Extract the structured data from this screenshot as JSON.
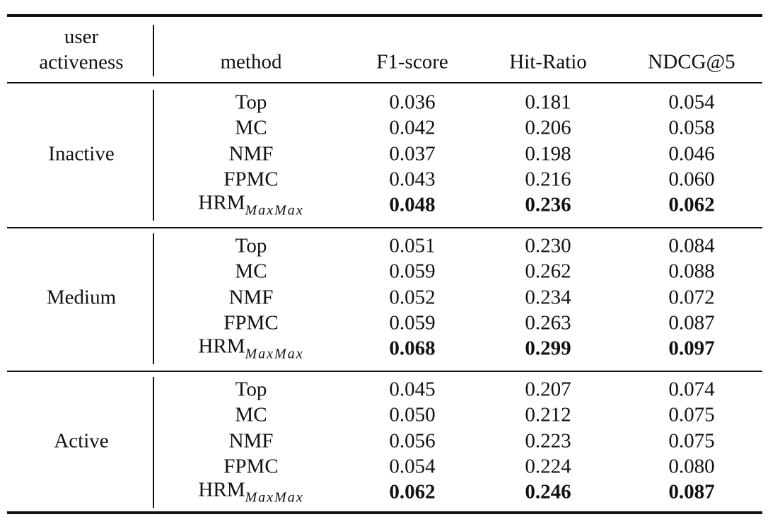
{
  "table": {
    "header": [
      "user activeness",
      "method",
      "F1-score",
      "Hit-Ratio",
      "NDCG@5"
    ],
    "groups": [
      {
        "name": "Inactive",
        "rows": [
          {
            "method": "Top",
            "values": [
              "0.036",
              "0.181",
              "0.054"
            ]
          },
          {
            "method": "MC",
            "values": [
              "0.042",
              "0.206",
              "0.058"
            ]
          },
          {
            "method": "NMF",
            "values": [
              "0.037",
              "0.198",
              "0.046"
            ]
          },
          {
            "method": "FPMC",
            "values": [
              "0.043",
              "0.216",
              "0.060"
            ]
          },
          {
            "method": "HRM",
            "subscript": "MaxMax",
            "bold": true,
            "values": [
              "0.048",
              "0.236",
              "0.062"
            ]
          }
        ]
      },
      {
        "name": "Medium",
        "rows": [
          {
            "method": "Top",
            "values": [
              "0.051",
              "0.230",
              "0.084"
            ]
          },
          {
            "method": "MC",
            "values": [
              "0.059",
              "0.262",
              "0.088"
            ]
          },
          {
            "method": "NMF",
            "values": [
              "0.052",
              "0.234",
              "0.072"
            ]
          },
          {
            "method": "FPMC",
            "values": [
              "0.059",
              "0.263",
              "0.087"
            ]
          },
          {
            "method": "HRM",
            "subscript": "MaxMax",
            "bold": true,
            "values": [
              "0.068",
              "0.299",
              "0.097"
            ]
          }
        ]
      },
      {
        "name": "Active",
        "rows": [
          {
            "method": "Top",
            "values": [
              "0.045",
              "0.207",
              "0.074"
            ]
          },
          {
            "method": "MC",
            "values": [
              "0.050",
              "0.212",
              "0.075"
            ]
          },
          {
            "method": "NMF",
            "values": [
              "0.056",
              "0.223",
              "0.075"
            ]
          },
          {
            "method": "FPMC",
            "values": [
              "0.054",
              "0.224",
              "0.080"
            ]
          },
          {
            "method": "HRM",
            "subscript": "MaxMax",
            "bold": true,
            "values": [
              "0.062",
              "0.246",
              "0.087"
            ]
          }
        ]
      }
    ]
  }
}
